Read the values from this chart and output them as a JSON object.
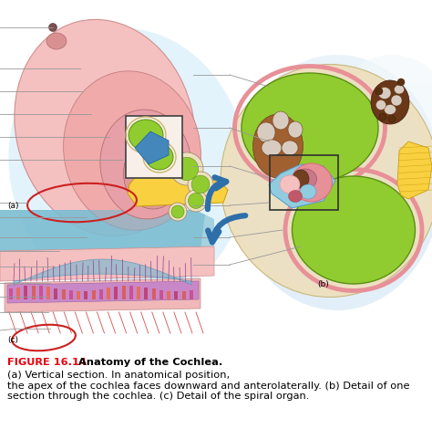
{
  "title_bold_red": "FIGURE 16.14",
  "title_bold_black": "Anatomy of the Cochlea.",
  "caption_rest": " (a) Vertical section. In anatomical position,\nthe apex of the cochlea faces downward and anterolaterally. (b) Detail of one\nsection through the cochlea. (c) Detail of the spiral organ.",
  "bg_color": "#ffffff",
  "fig_width": 4.74,
  "fig_height": 4.7,
  "dpi": 100,
  "label_a": "(a)",
  "label_b": "(b)",
  "label_c": "(c)",
  "label_fontsize": 6.5,
  "caption_fontsize": 8.2,
  "red_color": "#e8000d",
  "line_color": "#999999",
  "arrow_color": "#2e6faa",
  "pink_light": "#f5c0c0",
  "pink_mid": "#e89098",
  "pink_deep": "#d87080",
  "green_bright": "#90cc30",
  "green_dark": "#5a9010",
  "blue_light": "#90cce0",
  "blue_mid": "#5898c8",
  "blue_dark": "#2060a0",
  "yellow_bright": "#f8d040",
  "yellow_dark": "#c8a010",
  "beige_light": "#ede0c0",
  "beige_dark": "#c8b880",
  "brown_dark": "#704020",
  "brown_mid": "#a06030",
  "gray_bone": "#d8ccc0",
  "red_oval": "#cc2020",
  "teal_light": "#80c8d8",
  "teal_mid": "#50a0b8",
  "purple_light": "#c890c8",
  "purple_mid": "#a060a8"
}
